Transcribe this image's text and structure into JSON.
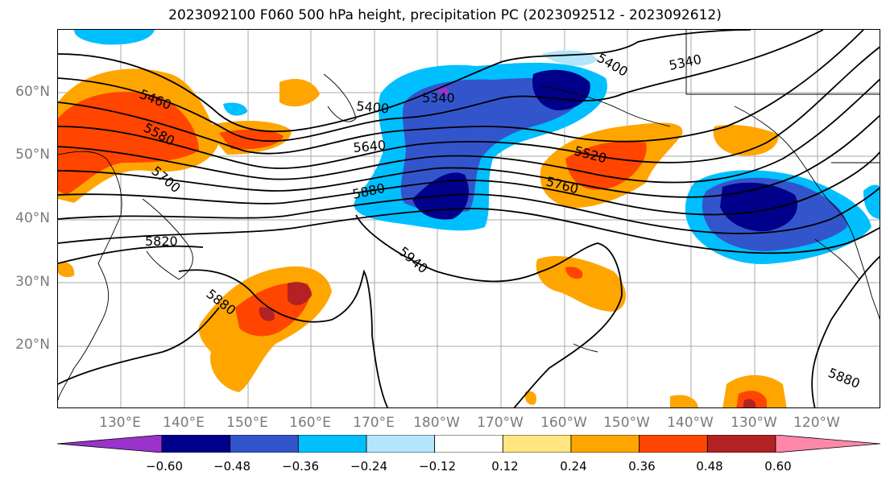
{
  "title": "2023092100 F060 500 hPa height, precipitation PC (2023092512 - 2023092612)",
  "lat_labels": [
    "60°N",
    "50°N",
    "40°N",
    "30°N",
    "20°N"
  ],
  "lon_labels": [
    "130°E",
    "140°E",
    "150°E",
    "160°E",
    "170°E",
    "180°W",
    "170°W",
    "160°W",
    "150°W",
    "140°W",
    "130°W",
    "120°W"
  ],
  "contour_labels": [
    "5460",
    "5580",
    "5700",
    "5820",
    "5400",
    "5340",
    "5640",
    "5880",
    "5940",
    "5400",
    "5340",
    "5520",
    "5760",
    "5880",
    "5880"
  ],
  "colorbar": {
    "tick_labels": [
      "−0.60",
      "−0.48",
      "−0.36",
      "−0.24",
      "−0.12",
      "0.12",
      "0.24",
      "0.36",
      "0.48",
      "0.60"
    ],
    "colors": [
      "#9933cc",
      "#00008b",
      "#3355cc",
      "#00bfff",
      "#b3e5fc",
      "#ffffff",
      "#ffe680",
      "#ffa500",
      "#ff4500",
      "#b22222",
      "#ff88aa"
    ]
  }
}
